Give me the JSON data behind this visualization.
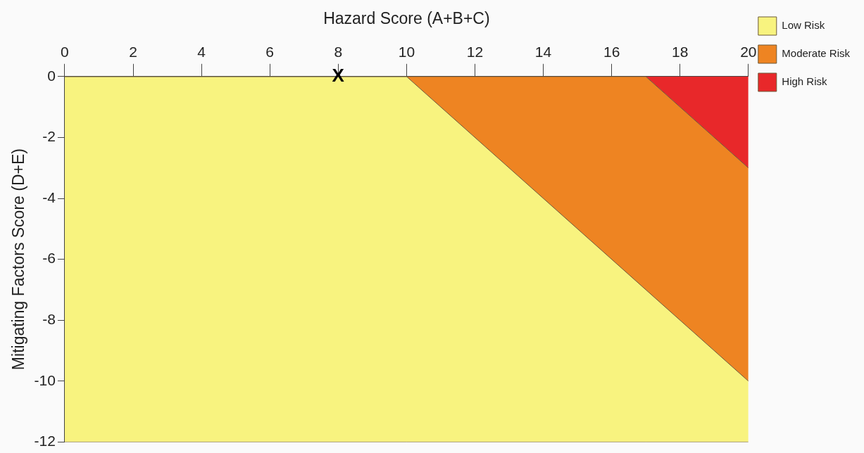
{
  "chart_data": {
    "type": "area",
    "xlabel": "Hazard Score (A+B+C)",
    "ylabel": "Mitigating Factors Score (D+E)",
    "xlim": [
      0,
      20
    ],
    "xticks": [
      0,
      2,
      4,
      6,
      8,
      10,
      12,
      14,
      16,
      18,
      20
    ],
    "ylim": [
      -12,
      0
    ],
    "yticks": [
      -12,
      -10,
      -8,
      -6,
      -4,
      -2,
      0
    ],
    "grid": false,
    "legend": "right",
    "marker": "none",
    "stacked": true,
    "x": [
      0,
      10,
      17,
      20
    ],
    "series": [
      {
        "name": "High Risk",
        "color": "#e8282a",
        "values": [
          0,
          0,
          0,
          -3
        ]
      },
      {
        "name": "Moderate Risk",
        "color": "#ee8422",
        "values": [
          0,
          0,
          -7,
          -7
        ]
      },
      {
        "name": "Low Risk",
        "color": "#f8f37f",
        "values": [
          -12,
          -12,
          -5,
          -2
        ]
      }
    ],
    "annotations": [
      {
        "text": "X",
        "x": 8,
        "y": 0
      }
    ]
  }
}
